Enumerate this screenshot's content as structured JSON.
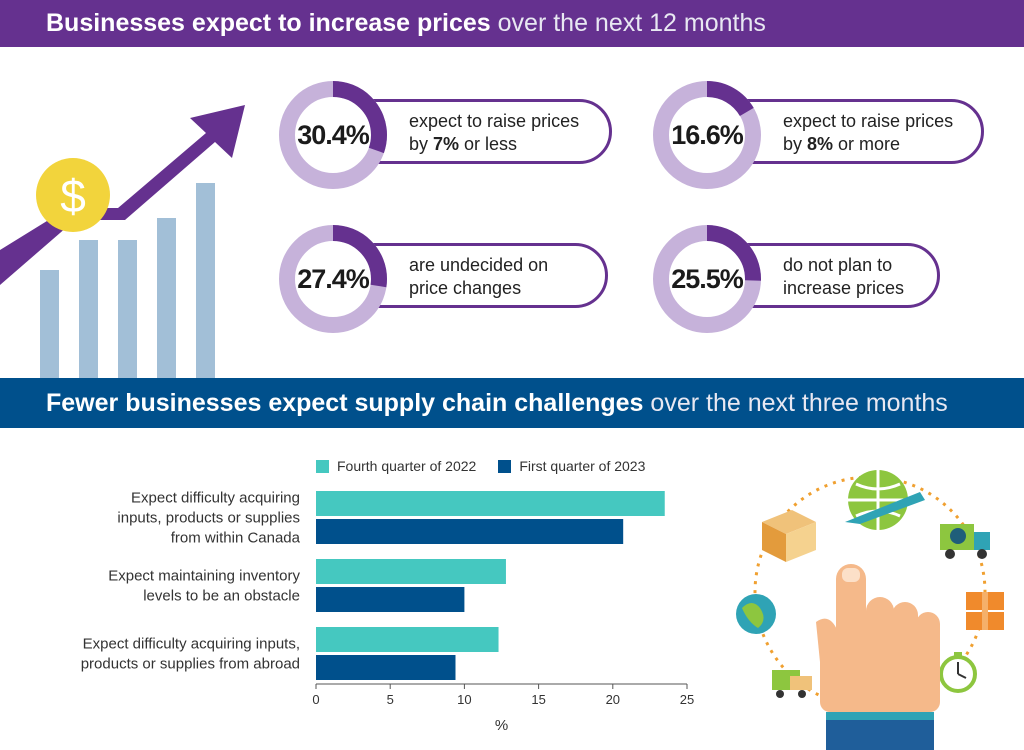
{
  "header": {
    "title_bold": "Businesses expect to increase prices",
    "title_light": "over the next 12 months"
  },
  "stats": [
    {
      "pct": "30.4%",
      "value": 30.4,
      "line1_a": "expect to raise prices",
      "line2_a": "by ",
      "line2_b": "7%",
      "line2_c": " or less"
    },
    {
      "pct": "16.6%",
      "value": 16.6,
      "line1_a": "expect to raise prices",
      "line2_a": "by ",
      "line2_b": "8%",
      "line2_c": " or more"
    },
    {
      "pct": "27.4%",
      "value": 27.4,
      "line1_a": "are undecided on",
      "line2_a": "price changes",
      "line2_b": "",
      "line2_c": ""
    },
    {
      "pct": "25.5%",
      "value": 25.5,
      "line1_a": "do not plan to",
      "line2_a": "increase prices",
      "line2_b": "",
      "line2_c": ""
    }
  ],
  "section2": {
    "title_bold": "Fewer businesses expect supply chain challenges",
    "title_light": "over the next three months"
  },
  "colors": {
    "purple": "#65318f",
    "ring_light": "#c6b2da",
    "navy": "#00508c",
    "teal": "#45c8c0",
    "bar_light_blue": "#a2bfd7",
    "coin": "#f2d43c"
  },
  "chart_data": {
    "type": "bar",
    "orientation": "horizontal",
    "categories": [
      [
        "Expect difficulty acquiring",
        "inputs, products or supplies",
        "from within Canada"
      ],
      [
        "Expect maintaining inventory",
        "levels to be an obstacle"
      ],
      [
        "Expect difficulty acquiring inputs,",
        "products or supplies from abroad"
      ]
    ],
    "series": [
      {
        "name": "Fourth quarter of 2022",
        "color": "#45c8c0",
        "values": [
          23.5,
          12.8,
          12.3
        ]
      },
      {
        "name": "First quarter of 2023",
        "color": "#00508c",
        "values": [
          20.7,
          10.0,
          9.4
        ]
      }
    ],
    "xlabel": "%",
    "xlim": [
      0,
      25
    ],
    "xticks": [
      "0",
      "5",
      "10",
      "15",
      "20",
      "25"
    ],
    "legend": "top"
  }
}
